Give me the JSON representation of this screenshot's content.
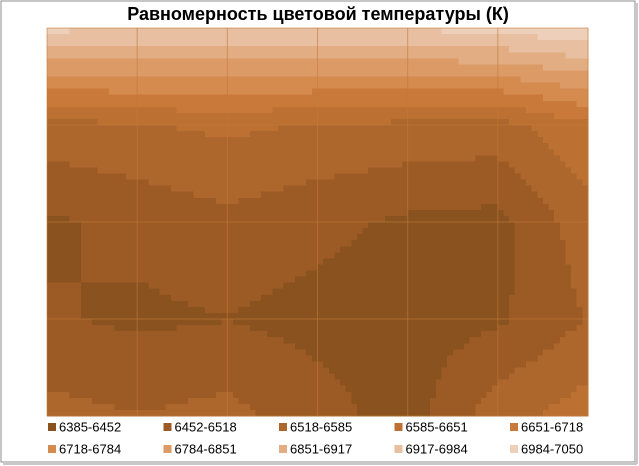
{
  "chart_data": {
    "type": "contour",
    "title": "Равномерность цветовой температуры (К)",
    "z": [
      [
        7000,
        6990,
        6980,
        6980,
        6990,
        7010,
        7040
      ],
      [
        6560,
        6580,
        6600,
        6580,
        6570,
        6560,
        6640
      ],
      [
        6440,
        6470,
        6500,
        6470,
        6440,
        6430,
        6560
      ],
      [
        6460,
        6440,
        6450,
        6430,
        6420,
        6440,
        6520
      ],
      [
        6540,
        6520,
        6540,
        6480,
        6420,
        6560,
        6620
      ]
    ],
    "levels": [
      6385,
      6452,
      6518,
      6585,
      6651,
      6718,
      6784,
      6851,
      6917,
      6984,
      7050
    ],
    "bands": [
      {
        "name": "6385-6452",
        "color": "#8a521f"
      },
      {
        "name": "6452-6518",
        "color": "#9c5b25"
      },
      {
        "name": "6518-6585",
        "color": "#ad662b"
      },
      {
        "name": "6585-6651",
        "color": "#bc7031"
      },
      {
        "name": "6651-6718",
        "color": "#c97a3a"
      },
      {
        "name": "6718-6784",
        "color": "#d58a4e"
      },
      {
        "name": "6784-6851",
        "color": "#dc9b66"
      },
      {
        "name": "6851-6917",
        "color": "#e2ad83"
      },
      {
        "name": "6917-6984",
        "color": "#e8bfa0"
      },
      {
        "name": "6984-7050",
        "color": "#edcfba"
      }
    ],
    "grid": true
  }
}
